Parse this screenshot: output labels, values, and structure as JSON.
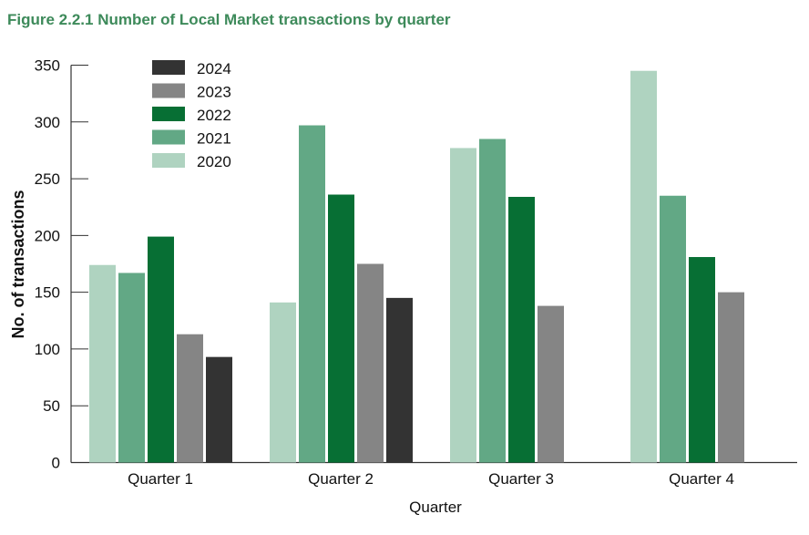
{
  "chart_data": {
    "type": "bar",
    "title": "Figure 2.2.1 Number of Local Market transactions by quarter",
    "xlabel": "Quarter",
    "ylabel": "No. of transactions",
    "ylim": [
      0,
      350
    ],
    "yticks": [
      0,
      50,
      100,
      150,
      200,
      250,
      300,
      350
    ],
    "grid": false,
    "legend_position": "top-left",
    "categories": [
      "Quarter 1",
      "Quarter 2",
      "Quarter 3",
      "Quarter 4"
    ],
    "series": [
      {
        "name": "2020",
        "color": "#afd3c0",
        "values": [
          174,
          141,
          277,
          345
        ]
      },
      {
        "name": "2021",
        "color": "#62a885",
        "values": [
          167,
          297,
          285,
          235
        ]
      },
      {
        "name": "2022",
        "color": "#076f34",
        "values": [
          199,
          236,
          234,
          181
        ]
      },
      {
        "name": "2023",
        "color": "#858585",
        "values": [
          113,
          175,
          138,
          150
        ]
      },
      {
        "name": "2024",
        "color": "#333333",
        "values": [
          93,
          145,
          null,
          null
        ]
      }
    ],
    "legend_order": [
      "2024",
      "2023",
      "2022",
      "2021",
      "2020"
    ]
  }
}
